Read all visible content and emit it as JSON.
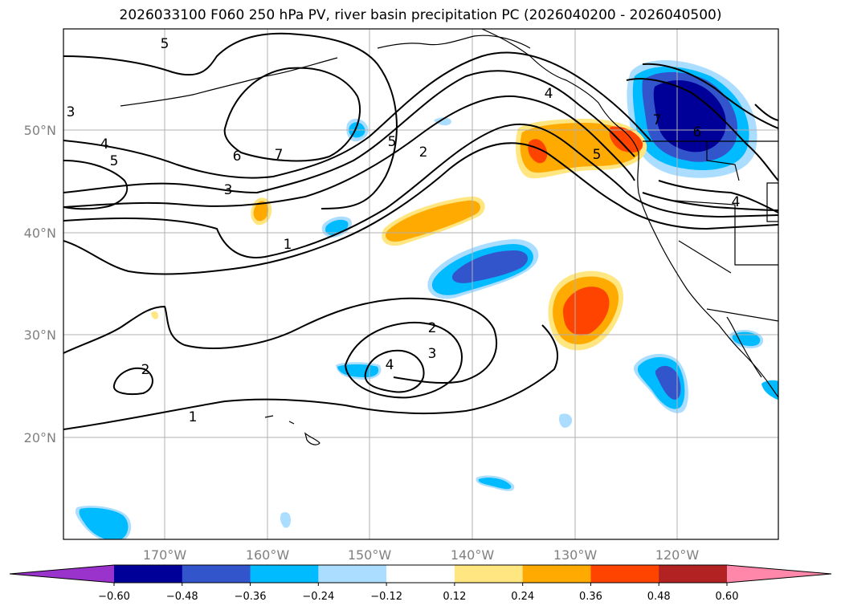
{
  "title": "2026033100 F060 250 hPa PV, river basin precipitation PC (2026040200 - 2026040500)",
  "lat_labels": [
    "50°N",
    "40°N",
    "30°N",
    "20°N"
  ],
  "lon_labels": [
    "170°W",
    "160°W",
    "150°W",
    "140°W",
    "130°W",
    "120°W"
  ],
  "colorbar": {
    "levels": [
      "−0.60",
      "−0.48",
      "−0.36",
      "−0.24",
      "−0.12",
      "0.12",
      "0.24",
      "0.36",
      "0.48",
      "0.60"
    ],
    "colors": [
      "#9933cc",
      "#000099",
      "#3355cc",
      "#00bbff",
      "#aaddff",
      "#ffffff",
      "#ffe680",
      "#ffaa00",
      "#ff4400",
      "#b22222",
      "#ff88aa"
    ]
  },
  "pv_labels": [
    "5",
    "3",
    "4",
    "5",
    "6",
    "7",
    "3",
    "5",
    "2",
    "4",
    "1",
    "2",
    "3",
    "4",
    "2",
    "1",
    "7",
    "6",
    "5",
    "4"
  ]
}
